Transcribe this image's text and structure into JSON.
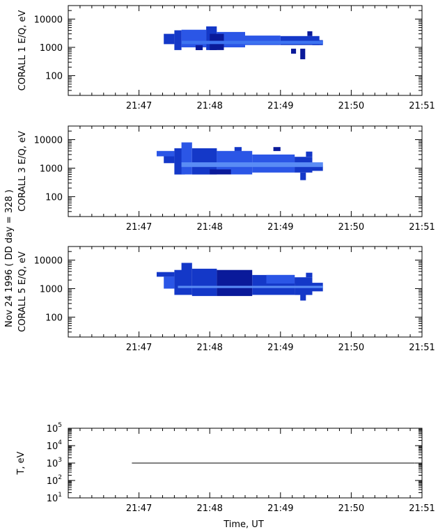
{
  "figure": {
    "side_label_line1": "Nov 24 1996  ( DD day = 328 )",
    "x_title": "Time, UT"
  },
  "chart_data": [
    {
      "type": "heatmap",
      "ylabel": "CORALL 1 E/Q, eV",
      "ylog": true,
      "ylim": [
        20,
        30000
      ],
      "yticks": [
        100,
        1000,
        10000
      ],
      "xlim_minutes": [
        46.0,
        51.0
      ],
      "xtick_labels": [
        "21:47",
        "21:48",
        "21:49",
        "21:50",
        "21:51"
      ],
      "xtick_minutes": [
        47,
        48,
        49,
        50,
        51
      ],
      "colors": [
        "#0a1a9a",
        "#1438c8",
        "#2b56e6",
        "#3d73f0",
        "#5a8cf5"
      ],
      "cells": [
        {
          "t": [
            47.35,
            47.5
          ],
          "e": [
            1300,
            3000
          ],
          "c": 1
        },
        {
          "t": [
            47.5,
            47.6
          ],
          "e": [
            800,
            4000
          ],
          "c": 1
        },
        {
          "t": [
            47.6,
            47.95
          ],
          "e": [
            1000,
            4200
          ],
          "c": 2
        },
        {
          "t": [
            47.95,
            48.1
          ],
          "e": [
            800,
            5500
          ],
          "c": 1
        },
        {
          "t": [
            48.1,
            48.5
          ],
          "e": [
            1000,
            3500
          ],
          "c": 2
        },
        {
          "t": [
            48.5,
            49.0
          ],
          "e": [
            1200,
            2600
          ],
          "c": 2
        },
        {
          "t": [
            48.0,
            48.2
          ],
          "e": [
            800,
            3000
          ],
          "c": 0
        },
        {
          "t": [
            47.8,
            47.9
          ],
          "e": [
            800,
            1200
          ],
          "c": 0
        },
        {
          "t": [
            49.0,
            49.55
          ],
          "e": [
            1200,
            2500
          ],
          "c": 1
        },
        {
          "t": [
            49.38,
            49.45
          ],
          "e": [
            2500,
            3700
          ],
          "c": 0
        },
        {
          "t": [
            49.15,
            49.22
          ],
          "e": [
            600,
            900
          ],
          "c": 0
        },
        {
          "t": [
            49.28,
            49.35
          ],
          "e": [
            380,
            900
          ],
          "c": 0
        },
        {
          "t": [
            49.45,
            49.6
          ],
          "e": [
            1200,
            1800
          ],
          "c": 1
        },
        {
          "t": [
            47.6,
            49.6
          ],
          "e": [
            1300,
            1700
          ],
          "c": 3
        }
      ]
    },
    {
      "type": "heatmap",
      "ylabel": "CORALL 3 E/Q, eV",
      "ylog": true,
      "ylim": [
        20,
        30000
      ],
      "yticks": [
        100,
        1000,
        10000
      ],
      "xlim_minutes": [
        46.0,
        51.0
      ],
      "xtick_labels": [
        "21:47",
        "21:48",
        "21:49",
        "21:50",
        "21:51"
      ],
      "xtick_minutes": [
        47,
        48,
        49,
        50,
        51
      ],
      "colors": [
        "#0a1a9a",
        "#1438c8",
        "#2b56e6",
        "#3d73f0",
        "#5a8cf5"
      ],
      "cells": [
        {
          "t": [
            47.25,
            47.5
          ],
          "e": [
            2600,
            4000
          ],
          "c": 2
        },
        {
          "t": [
            47.35,
            47.5
          ],
          "e": [
            1500,
            2600
          ],
          "c": 1
        },
        {
          "t": [
            47.5,
            47.65
          ],
          "e": [
            600,
            5000
          ],
          "c": 1
        },
        {
          "t": [
            47.6,
            47.75
          ],
          "e": [
            600,
            8000
          ],
          "c": 2
        },
        {
          "t": [
            47.75,
            48.1
          ],
          "e": [
            600,
            5000
          ],
          "c": 1
        },
        {
          "t": [
            48.1,
            48.6
          ],
          "e": [
            600,
            4000
          ],
          "c": 2
        },
        {
          "t": [
            48.35,
            48.45
          ],
          "e": [
            4000,
            5500
          ],
          "c": 1
        },
        {
          "t": [
            48.6,
            49.2
          ],
          "e": [
            700,
            3000
          ],
          "c": 2
        },
        {
          "t": [
            48.9,
            49.0
          ],
          "e": [
            4000,
            5500
          ],
          "c": 0
        },
        {
          "t": [
            49.2,
            49.45
          ],
          "e": [
            700,
            2500
          ],
          "c": 1
        },
        {
          "t": [
            49.28,
            49.36
          ],
          "e": [
            380,
            700
          ],
          "c": 1
        },
        {
          "t": [
            49.36,
            49.45
          ],
          "e": [
            2500,
            3800
          ],
          "c": 1
        },
        {
          "t": [
            49.45,
            49.6
          ],
          "e": [
            800,
            1200
          ],
          "c": 1
        },
        {
          "t": [
            48.0,
            48.3
          ],
          "e": [
            600,
            900
          ],
          "c": 0
        },
        {
          "t": [
            47.6,
            49.6
          ],
          "e": [
            1100,
            1600
          ],
          "c": 4
        }
      ]
    },
    {
      "type": "heatmap",
      "ylabel": "CORALL 5 E/Q, eV",
      "ylog": true,
      "ylim": [
        20,
        30000
      ],
      "yticks": [
        100,
        1000,
        10000
      ],
      "xlim_minutes": [
        46.0,
        51.0
      ],
      "xtick_labels": [
        "21:47",
        "21:48",
        "21:49",
        "21:50",
        "21:51"
      ],
      "xtick_minutes": [
        47,
        48,
        49,
        50,
        51
      ],
      "colors": [
        "#0a1a9a",
        "#1438c8",
        "#2b56e6",
        "#3d73f0",
        "#5a8cf5"
      ],
      "cells": [
        {
          "t": [
            47.25,
            47.5
          ],
          "e": [
            2600,
            3800
          ],
          "c": 1
        },
        {
          "t": [
            47.35,
            47.5
          ],
          "e": [
            1000,
            2600
          ],
          "c": 2
        },
        {
          "t": [
            47.5,
            47.65
          ],
          "e": [
            600,
            4500
          ],
          "c": 1
        },
        {
          "t": [
            47.6,
            47.75
          ],
          "e": [
            600,
            8000
          ],
          "c": 1
        },
        {
          "t": [
            47.75,
            48.1
          ],
          "e": [
            550,
            5000
          ],
          "c": 1
        },
        {
          "t": [
            48.1,
            48.6
          ],
          "e": [
            550,
            4500
          ],
          "c": 0
        },
        {
          "t": [
            48.6,
            49.2
          ],
          "e": [
            600,
            3000
          ],
          "c": 1
        },
        {
          "t": [
            48.8,
            49.2
          ],
          "e": [
            1500,
            3000
          ],
          "c": 2
        },
        {
          "t": [
            49.2,
            49.45
          ],
          "e": [
            600,
            2500
          ],
          "c": 1
        },
        {
          "t": [
            49.28,
            49.36
          ],
          "e": [
            380,
            600
          ],
          "c": 1
        },
        {
          "t": [
            49.36,
            49.45
          ],
          "e": [
            2500,
            3600
          ],
          "c": 1
        },
        {
          "t": [
            49.45,
            49.6
          ],
          "e": [
            800,
            1600
          ],
          "c": 1
        },
        {
          "t": [
            47.55,
            49.6
          ],
          "e": [
            1050,
            1250
          ],
          "c": 4
        }
      ]
    },
    {
      "type": "line",
      "ylabel": "T, eV",
      "ylog": true,
      "ylim": [
        10,
        100000
      ],
      "yticks": [
        10,
        100,
        1000,
        10000,
        100000
      ],
      "ytick_base": "10",
      "ytick_exponents": [
        "1",
        "2",
        "3",
        "4",
        "5"
      ],
      "xlim_minutes": [
        46.0,
        51.0
      ],
      "xtick_labels": [
        "21:47",
        "21:48",
        "21:49",
        "21:50",
        "21:51"
      ],
      "xtick_minutes": [
        47,
        48,
        49,
        50,
        51
      ],
      "series": [
        {
          "x": [
            46.9,
            50.9
          ],
          "y": [
            1000,
            1000
          ]
        }
      ]
    }
  ]
}
